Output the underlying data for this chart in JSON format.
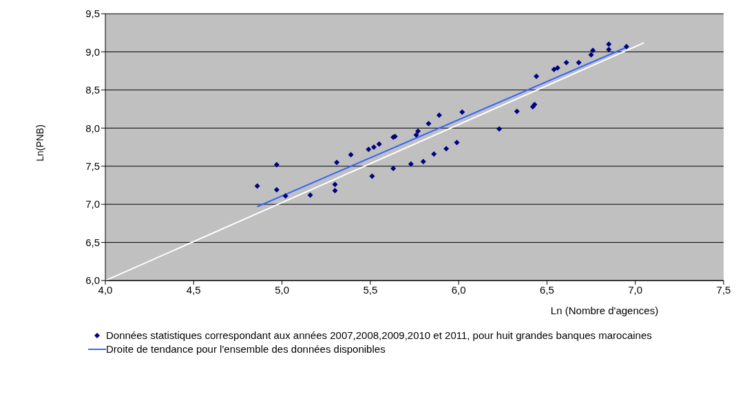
{
  "chart_data": {
    "type": "scatter",
    "xlabel": "Ln (Nombre d'agences)",
    "ylabel": "Ln(PNB)",
    "xlim": [
      4.0,
      7.5
    ],
    "xticks": [
      {
        "value": 4.0,
        "label": "4,0"
      },
      {
        "value": 4.5,
        "label": "4,5"
      },
      {
        "value": 5.0,
        "label": "5,0"
      },
      {
        "value": 5.5,
        "label": "5,5"
      },
      {
        "value": 6.0,
        "label": "6,0"
      },
      {
        "value": 6.5,
        "label": "6,5"
      },
      {
        "value": 7.0,
        "label": "7,0"
      },
      {
        "value": 7.5,
        "label": "7,5"
      }
    ],
    "ylim": [
      6.0,
      9.5
    ],
    "yticks": [
      {
        "value": 6.0,
        "label": "6,0"
      },
      {
        "value": 6.5,
        "label": "6,5"
      },
      {
        "value": 7.0,
        "label": "7,0"
      },
      {
        "value": 7.5,
        "label": "7,5"
      },
      {
        "value": 8.0,
        "label": "8,0"
      },
      {
        "value": 8.5,
        "label": "8,5"
      },
      {
        "value": 9.0,
        "label": "9,0"
      },
      {
        "value": 9.5,
        "label": "9,5"
      }
    ],
    "grid": "y",
    "legend": "bottom",
    "series": [
      {
        "type": "scatter",
        "name": "Données statistiques correspondant aux années 2007,2008,2009,2010 et 2011, pour huit grandes banques marocaines",
        "color": "#000080",
        "marker": "diamond",
        "x": [
          4.86,
          4.97,
          4.97,
          5.02,
          5.16,
          5.3,
          5.3,
          5.31,
          5.39,
          5.49,
          5.51,
          5.52,
          5.55,
          5.63,
          5.63,
          5.64,
          5.73,
          5.76,
          5.77,
          5.8,
          5.83,
          5.86,
          5.89,
          5.93,
          5.99,
          6.02,
          6.23,
          6.33,
          6.42,
          6.43,
          6.44,
          6.54,
          6.56,
          6.61,
          6.68,
          6.75,
          6.76,
          6.85,
          6.85,
          6.95
        ],
        "values": [
          7.24,
          7.52,
          7.19,
          7.11,
          7.12,
          7.26,
          7.18,
          7.55,
          7.65,
          7.72,
          7.37,
          7.75,
          7.79,
          7.47,
          7.88,
          7.89,
          7.53,
          7.91,
          7.96,
          7.56,
          8.06,
          7.66,
          8.17,
          7.73,
          7.81,
          8.21,
          7.99,
          8.22,
          8.28,
          8.31,
          8.68,
          8.77,
          8.79,
          8.86,
          8.86,
          8.96,
          9.02,
          9.1,
          9.03,
          9.07
        ]
      },
      {
        "type": "line",
        "name": "Droite de tendance pour l'ensemble des données disponibles",
        "color": "#3366ff",
        "marker": "none",
        "x": [
          4.86,
          6.95
        ],
        "values": [
          6.97,
          9.06
        ]
      },
      {
        "type": "line",
        "color": "#ffffff",
        "marker": "none",
        "x": [
          4.0,
          7.05
        ],
        "values": [
          6.0,
          9.12
        ]
      }
    ]
  }
}
